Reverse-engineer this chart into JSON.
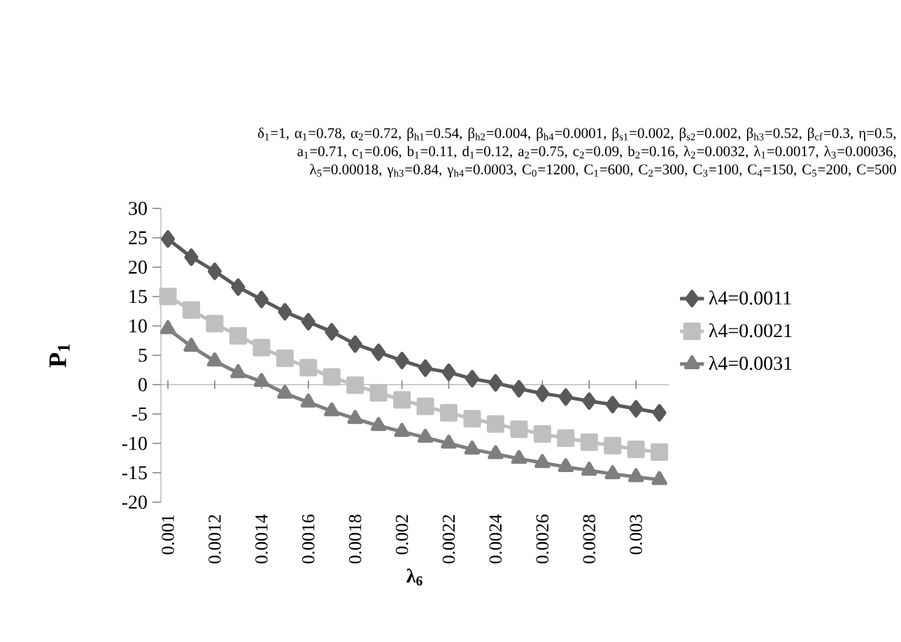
{
  "chart_data": {
    "type": "line",
    "annotations": [
      "δ$_{1}$=1, α$_{1}$=0.78, α$_{2}$=0.72, β$_{h1}$=0.54, β$_{h2}$=0.004, β$_{h4}$=0.0001, β$_{s1}$=0.002, β$_{s2}$=0.002, β$_{h3}$=0.52, β$_{cf}$=0.3, η=0.5, a$_{1}$=0.71, c$_{1}$=0.06, b$_{1}$=0.11, d$_{1}$=0.12, a$_{2}$=0.75, c$_{2}$=0.09, b$_{2}$=0.16, λ$_{2}$=0.0032, λ$_{1}$=0.0017, λ$_{3}$=0.00036, λ$_{5}$=0.00018, γ$_{h3}$=0.84, γ$_{h4}$=0.0003, C$_{0}$=1200, C$_{1}$=600, C$_{2}$=300, C$_{3}$=100, C$_{4}$=150, C$_{5}$=200, C=500"
    ],
    "xlabel": "λ$_{6}$",
    "ylabel": "P$_{1}$",
    "categories": [
      "0.001",
      null,
      "0.0012",
      null,
      "0.0014",
      null,
      "0.0016",
      null,
      "0.0018",
      null,
      "0.002",
      null,
      "0.0022",
      null,
      "0.0024",
      null,
      "0.0026",
      null,
      "0.0028",
      null,
      "0.003",
      null
    ],
    "ylim": [
      -20,
      30
    ],
    "yticks": [
      -20,
      -15,
      -10,
      -5,
      0,
      5,
      10,
      15,
      20,
      25,
      30
    ],
    "legend": "right",
    "series": [
      {
        "name": "λ4=0.0011",
        "color": "#595959",
        "marker": "diamond",
        "values": [
          24.8,
          21.7,
          19.3,
          16.6,
          14.5,
          12.4,
          10.7,
          9.0,
          6.9,
          5.5,
          4.1,
          2.8,
          2.1,
          1.0,
          0.3,
          -0.7,
          -1.5,
          -2.1,
          -2.8,
          -3.4,
          -4.1,
          -4.8
        ]
      },
      {
        "name": "λ4=0.0021",
        "color": "#bfbfbf",
        "marker": "square",
        "values": [
          15.0,
          12.7,
          10.4,
          8.3,
          6.3,
          4.5,
          2.9,
          1.3,
          -0.1,
          -1.4,
          -2.6,
          -3.7,
          -4.8,
          -5.8,
          -6.7,
          -7.6,
          -8.4,
          -9.1,
          -9.8,
          -10.4,
          -11.0,
          -11.5
        ]
      },
      {
        "name": "λ4=0.0031",
        "color": "#7f7f7f",
        "marker": "triangle",
        "values": [
          9.5,
          6.5,
          4.0,
          2.0,
          0.5,
          -1.5,
          -3.0,
          -4.5,
          -5.8,
          -7.0,
          -8.0,
          -9.0,
          -10.0,
          -11.0,
          -11.8,
          -12.6,
          -13.3,
          -14.0,
          -14.6,
          -15.2,
          -15.7,
          -16.2
        ]
      }
    ]
  }
}
